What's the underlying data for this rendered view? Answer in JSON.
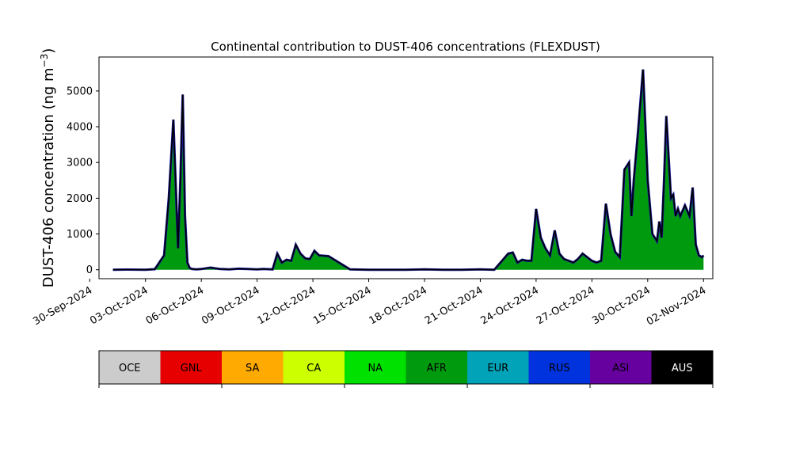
{
  "chart_data": {
    "type": "area",
    "title": "Continental contribution to DUST-406 concentrations (FLEXDUST)",
    "ylabel": "DUST-406 concentration (ng m",
    "ylabel_superscript": "−3",
    "ylabel_suffix": ")",
    "xlabel": "",
    "xlim": [
      "2024-09-30T12:00",
      "2024-11-02T12:00"
    ],
    "ylim": [
      -250,
      5950
    ],
    "y_ticks": [
      0,
      1000,
      2000,
      3000,
      4000,
      5000
    ],
    "x_ticks": [
      "30-Sep-2024",
      "03-Oct-2024",
      "06-Oct-2024",
      "09-Oct-2024",
      "12-Oct-2024",
      "15-Oct-2024",
      "18-Oct-2024",
      "21-Oct-2024",
      "24-Oct-2024",
      "27-Oct-2024",
      "30-Oct-2024",
      "02-Nov-2024"
    ],
    "grid": false,
    "series": [
      {
        "name": "AFR",
        "color": "#009a0e",
        "x": [
          "2024-10-01T06:00",
          "2024-10-02T00:00",
          "2024-10-03T00:00",
          "2024-10-03T12:00",
          "2024-10-04T00:00",
          "2024-10-04T06:00",
          "2024-10-04T12:00",
          "2024-10-04T18:00",
          "2024-10-04T21:00",
          "2024-10-05T00:00",
          "2024-10-05T03:00",
          "2024-10-05T06:00",
          "2024-10-05T09:00",
          "2024-10-05T12:00",
          "2024-10-05T18:00",
          "2024-10-06T00:00",
          "2024-10-06T12:00",
          "2024-10-07T00:00",
          "2024-10-07T12:00",
          "2024-10-08T00:00",
          "2024-10-08T12:00",
          "2024-10-09T00:00",
          "2024-10-09T08:00",
          "2024-10-09T14:00",
          "2024-10-09T20:00",
          "2024-10-10T02:00",
          "2024-10-10T08:00",
          "2024-10-10T14:00",
          "2024-10-10T20:00",
          "2024-10-11T02:00",
          "2024-10-11T08:00",
          "2024-10-11T14:00",
          "2024-10-11T20:00",
          "2024-10-12T02:00",
          "2024-10-12T08:00",
          "2024-10-12T20:00",
          "2024-10-14T00:00",
          "2024-10-15T00:00",
          "2024-10-16T00:00",
          "2024-10-17T00:00",
          "2024-10-18T00:00",
          "2024-10-19T00:00",
          "2024-10-20T00:00",
          "2024-10-21T00:00",
          "2024-10-21T18:00",
          "2024-10-22T06:00",
          "2024-10-22T12:00",
          "2024-10-22T18:00",
          "2024-10-23T00:00",
          "2024-10-23T06:00",
          "2024-10-23T12:00",
          "2024-10-23T18:00",
          "2024-10-24T00:00",
          "2024-10-24T06:00",
          "2024-10-24T12:00",
          "2024-10-24T18:00",
          "2024-10-25T00:00",
          "2024-10-25T06:00",
          "2024-10-25T12:00",
          "2024-10-25T18:00",
          "2024-10-26T00:00",
          "2024-10-26T06:00",
          "2024-10-26T12:00",
          "2024-10-26T18:00",
          "2024-10-27T00:00",
          "2024-10-27T06:00",
          "2024-10-27T12:00",
          "2024-10-27T18:00",
          "2024-10-28T00:00",
          "2024-10-28T06:00",
          "2024-10-28T12:00",
          "2024-10-28T18:00",
          "2024-10-29T00:00",
          "2024-10-29T03:00",
          "2024-10-29T06:00",
          "2024-10-29T12:00",
          "2024-10-29T18:00",
          "2024-10-30T00:00",
          "2024-10-30T06:00",
          "2024-10-30T12:00",
          "2024-10-30T15:00",
          "2024-10-30T18:00",
          "2024-10-30T21:00",
          "2024-10-31T00:00",
          "2024-10-31T06:00",
          "2024-10-31T09:00",
          "2024-10-31T12:00",
          "2024-10-31T15:00",
          "2024-10-31T18:00",
          "2024-11-01T00:00",
          "2024-11-01T06:00",
          "2024-11-01T10:00",
          "2024-11-01T14:00",
          "2024-11-01T18:00",
          "2024-11-01T22:00",
          "2024-11-02T00:00"
        ],
        "values": [
          0,
          5,
          0,
          15,
          400,
          2000,
          4200,
          600,
          2500,
          4900,
          1500,
          200,
          50,
          20,
          10,
          20,
          60,
          20,
          10,
          30,
          20,
          10,
          20,
          15,
          10,
          450,
          200,
          280,
          250,
          700,
          450,
          320,
          300,
          530,
          400,
          380,
          10,
          0,
          0,
          0,
          10,
          0,
          0,
          10,
          0,
          300,
          450,
          480,
          200,
          280,
          250,
          250,
          1700,
          900,
          600,
          400,
          1100,
          450,
          300,
          250,
          200,
          300,
          450,
          350,
          250,
          200,
          250,
          1850,
          1000,
          500,
          350,
          2800,
          3000,
          1500,
          2500,
          4000,
          5600,
          2500,
          1000,
          800,
          1350,
          900,
          2500,
          4300,
          2000,
          2100,
          1500,
          1700,
          1500,
          1800,
          1500,
          2300,
          700,
          400,
          350,
          400
        ]
      }
    ],
    "legend": [
      "OCE",
      "GNL",
      "SA",
      "CA",
      "NA",
      "AFR",
      "EUR",
      "RUS",
      "ASI",
      "AUS"
    ],
    "legend_colors": [
      "#cccccc",
      "#e60000",
      "#ffaa00",
      "#ccff00",
      "#00e100",
      "#009a0e",
      "#00a3b8",
      "#0033dd",
      "#66009f",
      "#000000"
    ],
    "legend_text_colors": [
      "#000000",
      "#000000",
      "#000000",
      "#000000",
      "#000000",
      "#000000",
      "#000000",
      "#000000",
      "#000000",
      "#ffffff"
    ]
  }
}
